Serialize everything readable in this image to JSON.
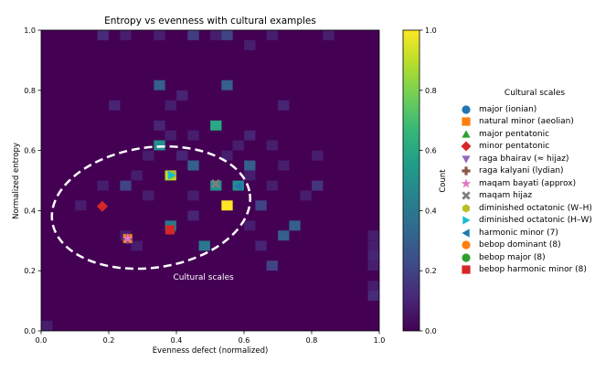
{
  "chart_data": {
    "type": "heatmap",
    "title": "Entropy vs evenness with cultural examples",
    "xlabel": "Evenness defect (normalized)",
    "ylabel": "Normalized entropy",
    "xlim": [
      0.0,
      1.0
    ],
    "ylim": [
      0.0,
      1.0
    ],
    "x_ticks": [
      "0.0",
      "0.2",
      "0.4",
      "0.6",
      "0.8",
      "1.0"
    ],
    "y_ticks": [
      "0.0",
      "0.2",
      "0.4",
      "0.6",
      "0.8",
      "1.0"
    ],
    "colorbar": {
      "label": "Count",
      "range": [
        0.0,
        1.0
      ],
      "ticks": [
        "0.0",
        "0.2",
        "0.4",
        "0.6",
        "0.8",
        "1.0"
      ],
      "colormap": [
        "#440154",
        "#482878",
        "#3e4a89",
        "#31688e",
        "#26828e",
        "#1f9e89",
        "#35b779",
        "#6ece58",
        "#b5de2b",
        "#fde725"
      ]
    },
    "bin_size": 0.0333,
    "cells": [
      {
        "x": 0.017,
        "y": 0.017,
        "v": 0.08
      },
      {
        "x": 0.183,
        "y": 0.983,
        "v": 0.12
      },
      {
        "x": 0.25,
        "y": 0.983,
        "v": 0.08
      },
      {
        "x": 0.35,
        "y": 0.983,
        "v": 0.08
      },
      {
        "x": 0.45,
        "y": 0.983,
        "v": 0.18
      },
      {
        "x": 0.517,
        "y": 0.983,
        "v": 0.08
      },
      {
        "x": 0.55,
        "y": 0.983,
        "v": 0.2
      },
      {
        "x": 0.683,
        "y": 0.983,
        "v": 0.08
      },
      {
        "x": 0.85,
        "y": 0.983,
        "v": 0.08
      },
      {
        "x": 0.617,
        "y": 0.95,
        "v": 0.08
      },
      {
        "x": 0.35,
        "y": 0.817,
        "v": 0.3
      },
      {
        "x": 0.55,
        "y": 0.817,
        "v": 0.3
      },
      {
        "x": 0.417,
        "y": 0.783,
        "v": 0.1
      },
      {
        "x": 0.217,
        "y": 0.75,
        "v": 0.1
      },
      {
        "x": 0.383,
        "y": 0.75,
        "v": 0.08
      },
      {
        "x": 0.717,
        "y": 0.75,
        "v": 0.1
      },
      {
        "x": 0.35,
        "y": 0.683,
        "v": 0.1
      },
      {
        "x": 0.517,
        "y": 0.683,
        "v": 0.6
      },
      {
        "x": 0.383,
        "y": 0.65,
        "v": 0.08
      },
      {
        "x": 0.45,
        "y": 0.65,
        "v": 0.08
      },
      {
        "x": 0.617,
        "y": 0.65,
        "v": 0.1
      },
      {
        "x": 0.583,
        "y": 0.617,
        "v": 0.08
      },
      {
        "x": 0.35,
        "y": 0.617,
        "v": 0.5
      },
      {
        "x": 0.683,
        "y": 0.617,
        "v": 0.08
      },
      {
        "x": 0.317,
        "y": 0.583,
        "v": 0.08
      },
      {
        "x": 0.417,
        "y": 0.583,
        "v": 0.1
      },
      {
        "x": 0.55,
        "y": 0.583,
        "v": 0.08
      },
      {
        "x": 0.817,
        "y": 0.583,
        "v": 0.08
      },
      {
        "x": 0.45,
        "y": 0.55,
        "v": 0.3
      },
      {
        "x": 0.617,
        "y": 0.55,
        "v": 0.3
      },
      {
        "x": 0.717,
        "y": 0.55,
        "v": 0.08
      },
      {
        "x": 0.283,
        "y": 0.517,
        "v": 0.08
      },
      {
        "x": 0.383,
        "y": 0.517,
        "v": 0.9
      },
      {
        "x": 0.617,
        "y": 0.517,
        "v": 0.08
      },
      {
        "x": 0.183,
        "y": 0.483,
        "v": 0.08
      },
      {
        "x": 0.25,
        "y": 0.483,
        "v": 0.2
      },
      {
        "x": 0.517,
        "y": 0.483,
        "v": 0.5
      },
      {
        "x": 0.583,
        "y": 0.483,
        "v": 0.5
      },
      {
        "x": 0.683,
        "y": 0.483,
        "v": 0.08
      },
      {
        "x": 0.817,
        "y": 0.483,
        "v": 0.15
      },
      {
        "x": 0.317,
        "y": 0.45,
        "v": 0.08
      },
      {
        "x": 0.45,
        "y": 0.45,
        "v": 0.08
      },
      {
        "x": 0.783,
        "y": 0.45,
        "v": 0.08
      },
      {
        "x": 0.117,
        "y": 0.417,
        "v": 0.08
      },
      {
        "x": 0.55,
        "y": 0.417,
        "v": 1.0
      },
      {
        "x": 0.65,
        "y": 0.417,
        "v": 0.2
      },
      {
        "x": 0.45,
        "y": 0.383,
        "v": 0.1
      },
      {
        "x": 0.383,
        "y": 0.35,
        "v": 0.4
      },
      {
        "x": 0.617,
        "y": 0.35,
        "v": 0.08
      },
      {
        "x": 0.75,
        "y": 0.35,
        "v": 0.3
      },
      {
        "x": 0.717,
        "y": 0.317,
        "v": 0.3
      },
      {
        "x": 0.25,
        "y": 0.317,
        "v": 0.08
      },
      {
        "x": 0.283,
        "y": 0.283,
        "v": 0.08
      },
      {
        "x": 0.483,
        "y": 0.283,
        "v": 0.4
      },
      {
        "x": 0.65,
        "y": 0.283,
        "v": 0.1
      },
      {
        "x": 0.683,
        "y": 0.217,
        "v": 0.2
      },
      {
        "x": 0.983,
        "y": 0.317,
        "v": 0.08
      },
      {
        "x": 0.983,
        "y": 0.283,
        "v": 0.08
      },
      {
        "x": 0.983,
        "y": 0.25,
        "v": 0.1
      },
      {
        "x": 0.983,
        "y": 0.217,
        "v": 0.08
      },
      {
        "x": 0.983,
        "y": 0.15,
        "v": 0.08
      },
      {
        "x": 0.983,
        "y": 0.117,
        "v": 0.12
      }
    ],
    "ellipse": {
      "cx": 0.325,
      "cy": 0.41,
      "rx": 0.295,
      "ry": 0.2,
      "angle": -8
    },
    "annotation": {
      "text": "Cultural scales",
      "x": 0.48,
      "y": 0.17
    },
    "legend": {
      "title": "Cultural scales",
      "placement": "right"
    },
    "series": [
      {
        "name": "major (ionian)",
        "color": "#1f77b4",
        "marker": "circle",
        "x": 0.256,
        "y": 0.305
      },
      {
        "name": "natural minor (aeolian)",
        "color": "#ff7f0e",
        "marker": "square",
        "x": 0.256,
        "y": 0.307
      },
      {
        "name": "major pentatonic",
        "color": "#2ca02c",
        "marker": "triangle-up",
        "x": 0.384,
        "y": 0.341
      },
      {
        "name": "minor pentatonic",
        "color": "#d62728",
        "marker": "diamond",
        "x": 0.181,
        "y": 0.414
      },
      {
        "name": "raga bhairav (≈ hijaz)",
        "color": "#9467bd",
        "marker": "triangle-down",
        "x": 0.386,
        "y": 0.518
      },
      {
        "name": "raga kalyani (lydian)",
        "color": "#8c564b",
        "marker": "plus",
        "x": 0.256,
        "y": 0.307
      },
      {
        "name": "maqam bayati (approx)",
        "color": "#e377c2",
        "marker": "star",
        "x": 0.256,
        "y": 0.307
      },
      {
        "name": "maqam hijaz",
        "color": "#7f7f7f",
        "marker": "x",
        "x": 0.516,
        "y": 0.489
      },
      {
        "name": "diminished octatonic (W–H)",
        "color": "#bcbd22",
        "marker": "hexagon",
        "x": 0.386,
        "y": 0.518
      },
      {
        "name": "diminished octatonic (H–W)",
        "color": "#17becf",
        "marker": "triangle-right",
        "x": 0.386,
        "y": 0.518
      },
      {
        "name": "harmonic minor (7)",
        "color": "#1f77b4",
        "marker": "triangle-left",
        "x": 0.583,
        "y": 0.482
      },
      {
        "name": "bebop dominant (8)",
        "color": "#ff7f0e",
        "marker": "circle",
        "x": 0.381,
        "y": 0.336
      },
      {
        "name": "bebop major (8)",
        "color": "#2ca02c",
        "marker": "circle",
        "x": 0.381,
        "y": 0.336
      },
      {
        "name": "bebop harmonic minor (8)",
        "color": "#d62728",
        "marker": "square",
        "x": 0.381,
        "y": 0.336
      }
    ]
  }
}
